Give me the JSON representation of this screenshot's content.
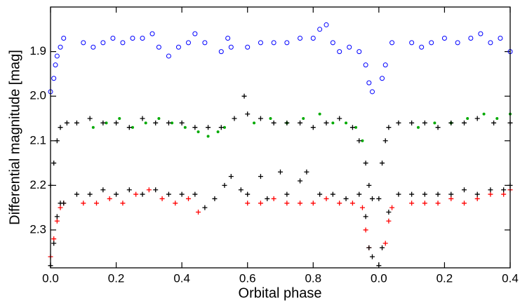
{
  "chart_data": {
    "type": "scatter",
    "xlabel": "Orbital phase",
    "ylabel": "Differential magnitude [mag]",
    "xlim": [
      0,
      1.4
    ],
    "ylim": [
      1.8,
      2.385
    ],
    "invert_y": true,
    "xticks": [
      {
        "value": 0,
        "label": "0.0"
      },
      0.2,
      0.4,
      0.6,
      0.8,
      {
        "value": 1.0,
        "label": "0.0"
      },
      {
        "value": 1.2,
        "label": "0.2"
      },
      {
        "value": 1.4,
        "label": "0.4"
      }
    ],
    "yticks": [
      1.9,
      {
        "value": 2.0,
        "label": "2.0"
      },
      2.1,
      2.2,
      2.3
    ],
    "series": [
      {
        "color": "#0000ff",
        "marker": "circle-open",
        "x": [
          0.0,
          0.01,
          0.015,
          0.02,
          0.03,
          0.04,
          0.1,
          0.13,
          0.16,
          0.19,
          0.22,
          0.25,
          0.28,
          0.31,
          0.33,
          0.36,
          0.39,
          0.42,
          0.44,
          0.47,
          0.52,
          0.54,
          0.55,
          0.6,
          0.64,
          0.68,
          0.72,
          0.76,
          0.8,
          0.82,
          0.84,
          0.86,
          0.88,
          0.91,
          0.94,
          0.96,
          0.97,
          0.98,
          1.01,
          1.02,
          1.04,
          1.1,
          1.13,
          1.16,
          1.2,
          1.24,
          1.28,
          1.31,
          1.34,
          1.37,
          1.4
        ],
        "values": [
          1.99,
          1.96,
          1.93,
          1.91,
          1.89,
          1.87,
          1.88,
          1.89,
          1.88,
          1.87,
          1.88,
          1.87,
          1.87,
          1.86,
          1.89,
          1.91,
          1.89,
          1.88,
          1.86,
          1.88,
          1.9,
          1.87,
          1.89,
          1.89,
          1.88,
          1.88,
          1.88,
          1.87,
          1.87,
          1.85,
          1.84,
          1.88,
          1.9,
          1.89,
          1.9,
          1.93,
          1.97,
          1.99,
          1.96,
          1.93,
          1.88,
          1.88,
          1.89,
          1.88,
          1.87,
          1.88,
          1.87,
          1.86,
          1.88,
          1.87,
          1.9
        ]
      },
      {
        "color": "#00aa00",
        "marker": "dot",
        "x": [
          0.13,
          0.17,
          0.21,
          0.25,
          0.29,
          0.33,
          0.37,
          0.41,
          0.45,
          0.48,
          0.51,
          0.53,
          0.62,
          0.67,
          0.72,
          0.77,
          0.82,
          0.86,
          0.9,
          0.93,
          0.95,
          1.12,
          1.17,
          1.22,
          1.27,
          1.32,
          1.36,
          1.4
        ],
        "values": [
          2.07,
          2.06,
          2.05,
          2.07,
          2.06,
          2.05,
          2.06,
          2.07,
          2.08,
          2.09,
          2.08,
          2.07,
          2.06,
          2.05,
          2.06,
          2.05,
          2.04,
          2.06,
          2.06,
          2.07,
          2.1,
          2.07,
          2.06,
          2.06,
          2.05,
          2.04,
          2.05,
          2.04
        ]
      },
      {
        "color": "#000000",
        "marker": "plus",
        "x": [
          0.0,
          0.01,
          0.02,
          0.03,
          0.05,
          0.08,
          0.12,
          0.16,
          0.2,
          0.24,
          0.28,
          0.32,
          0.36,
          0.4,
          0.44,
          0.48,
          0.52,
          0.56,
          0.59,
          0.6,
          0.64,
          0.68,
          0.72,
          0.76,
          0.8,
          0.84,
          0.88,
          0.92,
          0.94,
          0.96,
          0.97,
          0.98,
          1.0,
          1.01,
          1.02,
          1.03,
          1.06,
          1.1,
          1.14,
          1.18,
          1.22,
          1.26,
          1.3,
          1.35,
          1.4
        ],
        "values": [
          2.2,
          2.15,
          2.1,
          2.07,
          2.06,
          2.06,
          2.05,
          2.06,
          2.06,
          2.07,
          2.05,
          2.06,
          2.06,
          2.06,
          2.07,
          2.07,
          2.07,
          2.05,
          2.0,
          2.04,
          2.05,
          2.06,
          2.06,
          2.06,
          2.07,
          2.06,
          2.05,
          2.07,
          2.1,
          2.15,
          2.2,
          2.23,
          2.23,
          2.15,
          2.1,
          2.07,
          2.06,
          2.06,
          2.06,
          2.07,
          2.06,
          2.06,
          2.05,
          2.06,
          2.06
        ]
      },
      {
        "color": "#ff0000",
        "marker": "plus",
        "x": [
          0.0,
          0.01,
          0.02,
          0.03,
          0.04,
          0.1,
          0.14,
          0.18,
          0.22,
          0.26,
          0.3,
          0.34,
          0.38,
          0.42,
          0.45,
          0.6,
          0.64,
          0.68,
          0.72,
          0.76,
          0.8,
          0.84,
          0.88,
          0.92,
          0.95,
          0.96,
          0.97,
          1.02,
          1.03,
          1.04,
          1.1,
          1.14,
          1.18,
          1.22,
          1.26,
          1.3,
          1.34,
          1.38,
          1.4
        ],
        "values": [
          2.36,
          2.32,
          2.28,
          2.25,
          2.24,
          2.24,
          2.24,
          2.23,
          2.24,
          2.22,
          2.21,
          2.23,
          2.24,
          2.23,
          2.26,
          2.24,
          2.24,
          2.23,
          2.24,
          2.24,
          2.24,
          2.23,
          2.24,
          2.24,
          2.25,
          2.3,
          2.34,
          2.33,
          2.28,
          2.25,
          2.24,
          2.24,
          2.24,
          2.23,
          2.24,
          2.23,
          2.22,
          2.22,
          2.21
        ]
      },
      {
        "color": "#000000",
        "marker": "plus",
        "x": [
          0.0,
          0.01,
          0.02,
          0.03,
          0.04,
          0.08,
          0.12,
          0.16,
          0.2,
          0.24,
          0.28,
          0.32,
          0.36,
          0.4,
          0.44,
          0.47,
          0.5,
          0.53,
          0.55,
          0.58,
          0.6,
          0.64,
          0.66,
          0.7,
          0.72,
          0.76,
          0.78,
          0.82,
          0.86,
          0.9,
          0.94,
          0.96,
          0.97,
          0.98,
          1.0,
          1.01,
          1.03,
          1.06,
          1.1,
          1.14,
          1.18,
          1.22,
          1.26,
          1.3,
          1.34,
          1.38,
          1.4
        ],
        "values": [
          2.38,
          2.33,
          2.27,
          2.24,
          2.24,
          2.22,
          2.22,
          2.21,
          2.22,
          2.21,
          2.22,
          2.21,
          2.22,
          2.22,
          2.22,
          2.25,
          2.23,
          2.2,
          2.18,
          2.21,
          2.22,
          2.18,
          2.23,
          2.17,
          2.22,
          2.19,
          2.17,
          2.22,
          2.22,
          2.23,
          2.22,
          2.27,
          2.34,
          2.36,
          2.38,
          2.34,
          2.26,
          2.22,
          2.22,
          2.22,
          2.22,
          2.22,
          2.21,
          2.22,
          2.21,
          2.21,
          2.2
        ]
      }
    ]
  }
}
